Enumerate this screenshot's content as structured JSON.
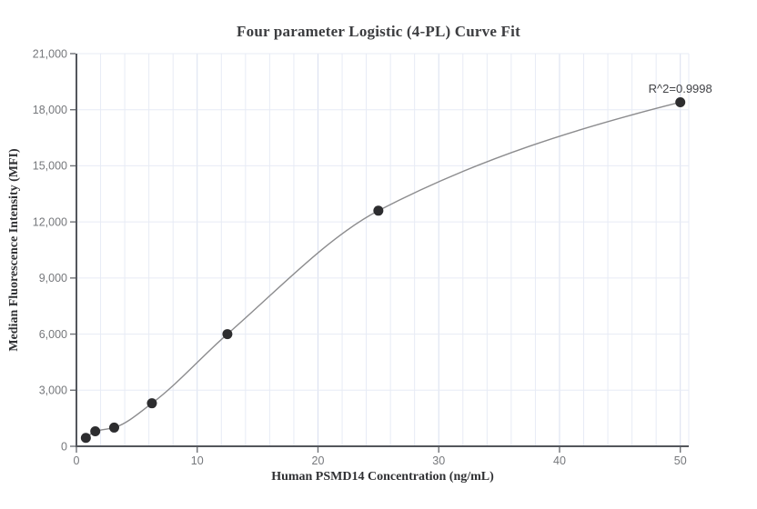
{
  "chart_data": {
    "type": "scatter",
    "title": "Four parameter Logistic (4-PL) Curve Fit",
    "xlabel": "Human PSMD14 Concentration (ng/mL)",
    "ylabel": "Median Fluorescence Intensity (MFI)",
    "annotation": "R^2=0.9998",
    "series": [
      {
        "name": "standard-curve-points",
        "x": [
          0.78,
          1.56,
          3.125,
          6.25,
          12.5,
          25,
          50
        ],
        "y": [
          450,
          800,
          1000,
          2300,
          6000,
          12600,
          18400
        ]
      }
    ],
    "fit_curve": "smooth 4-PL logistic fit drawn through all data points, from first point to last point",
    "xlim": [
      0,
      50.7
    ],
    "ylim": [
      0,
      21000
    ],
    "x_ticks": [
      0,
      10,
      20,
      30,
      40,
      50
    ],
    "x_tick_labels": [
      "0",
      "10",
      "20",
      "30",
      "40",
      "50"
    ],
    "x_minor_grid_step": 2,
    "y_ticks": [
      0,
      3000,
      6000,
      9000,
      12000,
      15000,
      18000,
      21000
    ],
    "y_tick_labels": [
      "0",
      "3,000",
      "6,000",
      "9,000",
      "12,000",
      "15,000",
      "18,000",
      "21,000"
    ],
    "grid": true,
    "legend": "none",
    "colors": {
      "background": "#ffffff",
      "title": "#3c3d40",
      "axis_label": "#2f3033",
      "axis_line": "#53565c",
      "tick_mark": "#6f7277",
      "tick_label": "#76787c",
      "grid_minor": "#e7ebf5",
      "grid_major": "#d9e0ef",
      "point": "#2d2d2f",
      "curve": "#8c8c8e",
      "annotation": "#424347"
    }
  }
}
